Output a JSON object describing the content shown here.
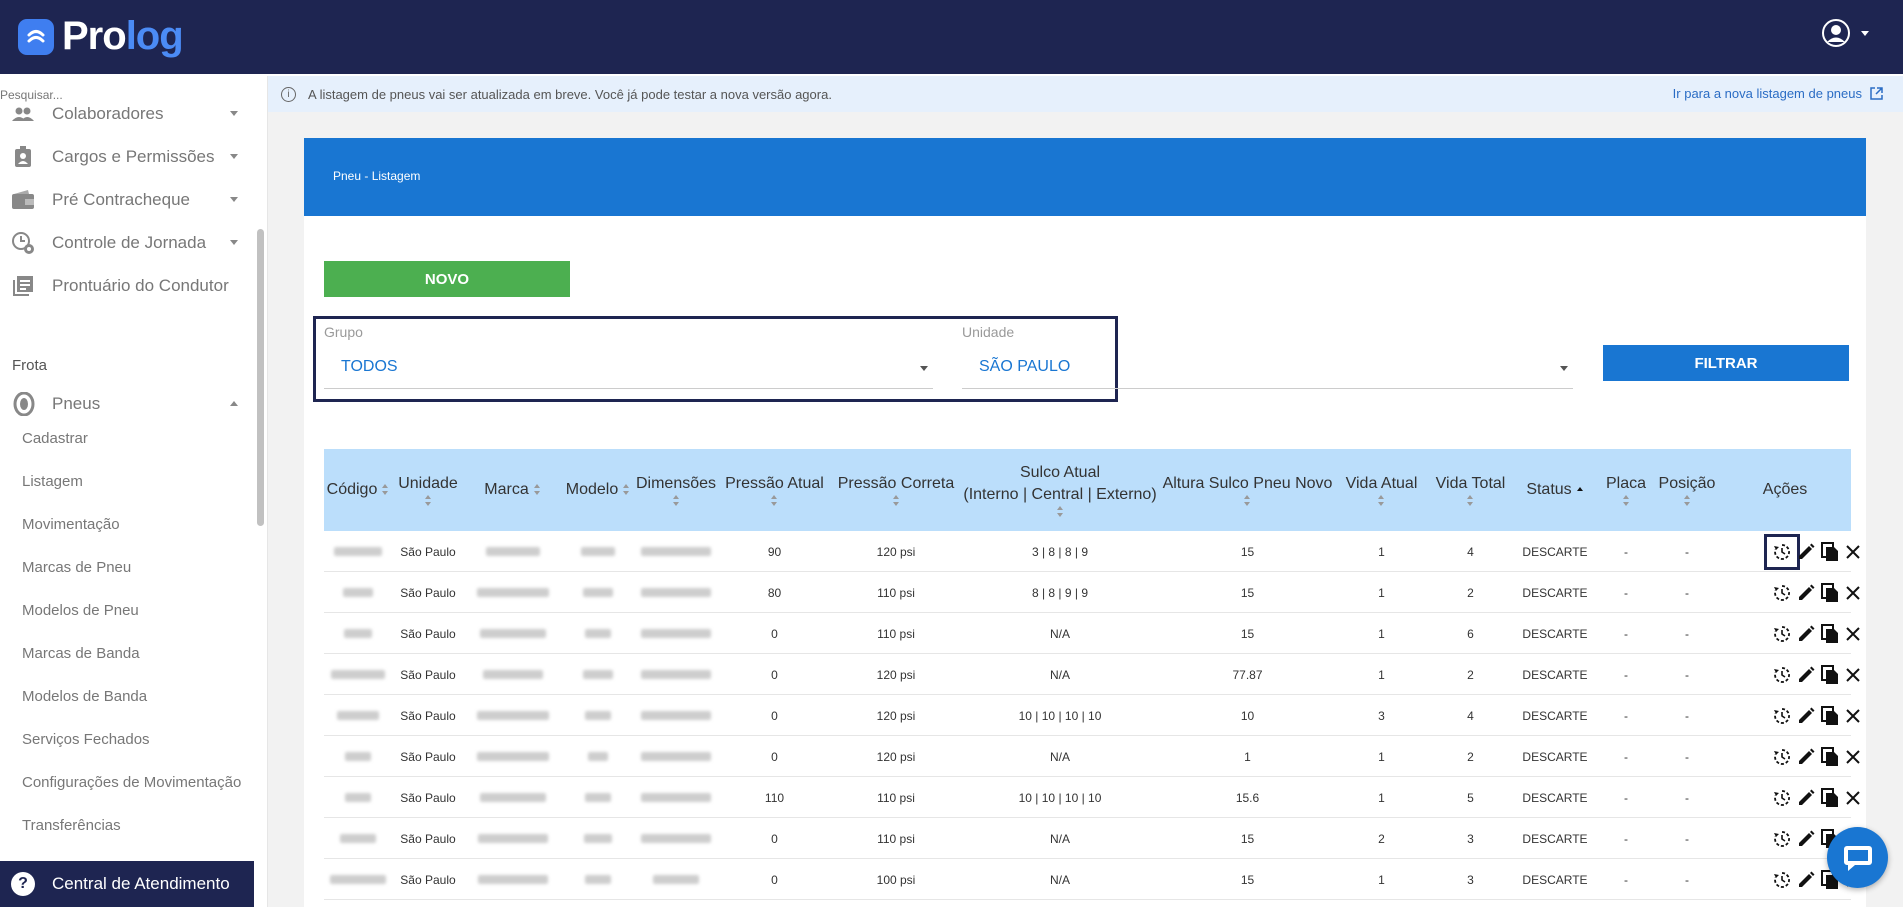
{
  "app": {
    "name_prefix": "Pro",
    "name_suffix": "log"
  },
  "sidebar": {
    "search_placeholder": "Pesquisar...",
    "items": [
      {
        "label": "Colaboradores",
        "icon": "people-icon"
      },
      {
        "label": "Cargos e Permissões",
        "icon": "badge-icon"
      },
      {
        "label": "Pré Contracheque",
        "icon": "wallet-icon"
      },
      {
        "label": "Controle de Jornada",
        "icon": "clock-gear-icon"
      },
      {
        "label": "Prontuário do Condutor",
        "icon": "document-list-icon"
      }
    ],
    "section_label": "Frota",
    "pneus_label": "Pneus",
    "sub_items": [
      "Cadastrar",
      "Listagem",
      "Movimentação",
      "Marcas de Pneu",
      "Modelos de Pneu",
      "Marcas de Banda",
      "Modelos de Banda",
      "Serviços Fechados",
      "Configurações de Movimentação",
      "Transferências"
    ],
    "help_label": "Central de Atendimento"
  },
  "notice": {
    "text": "A listagem de pneus vai ser atualizada em breve. Você já pode testar a nova versão agora.",
    "link": "Ir para a nova listagem de pneus"
  },
  "card": {
    "title": "Pneu - Listagem",
    "novo_label": "NOVO",
    "grupo_label": "Grupo",
    "grupo_value": "TODOS",
    "unidade_label": "Unidade",
    "unidade_value": "SÃO PAULO",
    "filtrar_label": "FILTRAR"
  },
  "table": {
    "headers": {
      "codigo": "Código",
      "unidade": "Unidade",
      "marca": "Marca",
      "modelo": "Modelo",
      "dimensoes": "Dimensões",
      "pressao_atual": "Pressão Atual",
      "pressao_correta": "Pressão Correta",
      "sulco_1": "Sulco Atual",
      "sulco_2": "(Interno | Central | Externo)",
      "altura": "Altura Sulco Pneu Novo",
      "vida_atual": "Vida Atual",
      "vida_total": "Vida Total",
      "status": "Status",
      "placa": "Placa",
      "posicao": "Posição",
      "acoes": "Ações"
    },
    "rows": [
      {
        "unidade": "São Paulo",
        "pressao_atual": "90",
        "pressao_correta": "120 psi",
        "sulco": "3 | 8 | 8 | 9",
        "altura": "15",
        "vida_atual": "1",
        "vida_total": "4",
        "status": "DESCARTE",
        "placa": "-",
        "posicao": "-"
      },
      {
        "unidade": "São Paulo",
        "pressao_atual": "80",
        "pressao_correta": "110 psi",
        "sulco": "8 | 8 | 9 | 9",
        "altura": "15",
        "vida_atual": "1",
        "vida_total": "2",
        "status": "DESCARTE",
        "placa": "-",
        "posicao": "-"
      },
      {
        "unidade": "São Paulo",
        "pressao_atual": "0",
        "pressao_correta": "110 psi",
        "sulco": "N/A",
        "altura": "15",
        "vida_atual": "1",
        "vida_total": "6",
        "status": "DESCARTE",
        "placa": "-",
        "posicao": "-"
      },
      {
        "unidade": "São Paulo",
        "pressao_atual": "0",
        "pressao_correta": "120 psi",
        "sulco": "N/A",
        "altura": "77.87",
        "vida_atual": "1",
        "vida_total": "2",
        "status": "DESCARTE",
        "placa": "-",
        "posicao": "-"
      },
      {
        "unidade": "São Paulo",
        "pressao_atual": "0",
        "pressao_correta": "120 psi",
        "sulco": "10 | 10 | 10 | 10",
        "altura": "10",
        "vida_atual": "3",
        "vida_total": "4",
        "status": "DESCARTE",
        "placa": "-",
        "posicao": "-"
      },
      {
        "unidade": "São Paulo",
        "pressao_atual": "0",
        "pressao_correta": "120 psi",
        "sulco": "N/A",
        "altura": "1",
        "vida_atual": "1",
        "vida_total": "2",
        "status": "DESCARTE",
        "placa": "-",
        "posicao": "-"
      },
      {
        "unidade": "São Paulo",
        "pressao_atual": "110",
        "pressao_correta": "110 psi",
        "sulco": "10 | 10 | 10 | 10",
        "altura": "15.6",
        "vida_atual": "1",
        "vida_total": "5",
        "status": "DESCARTE",
        "placa": "-",
        "posicao": "-"
      },
      {
        "unidade": "São Paulo",
        "pressao_atual": "0",
        "pressao_correta": "110 psi",
        "sulco": "N/A",
        "altura": "15",
        "vida_atual": "2",
        "vida_total": "3",
        "status": "DESCARTE",
        "placa": "-",
        "posicao": "-"
      },
      {
        "unidade": "São Paulo",
        "pressao_atual": "0",
        "pressao_correta": "100 psi",
        "sulco": "N/A",
        "altura": "15",
        "vida_atual": "1",
        "vida_total": "3",
        "status": "DESCARTE",
        "placa": "-",
        "posicao": "-"
      }
    ]
  },
  "colors": {
    "topbar": "#1e2551",
    "primary": "#1976d2",
    "novo": "#4caf50",
    "table_header": "#bbdefb"
  }
}
